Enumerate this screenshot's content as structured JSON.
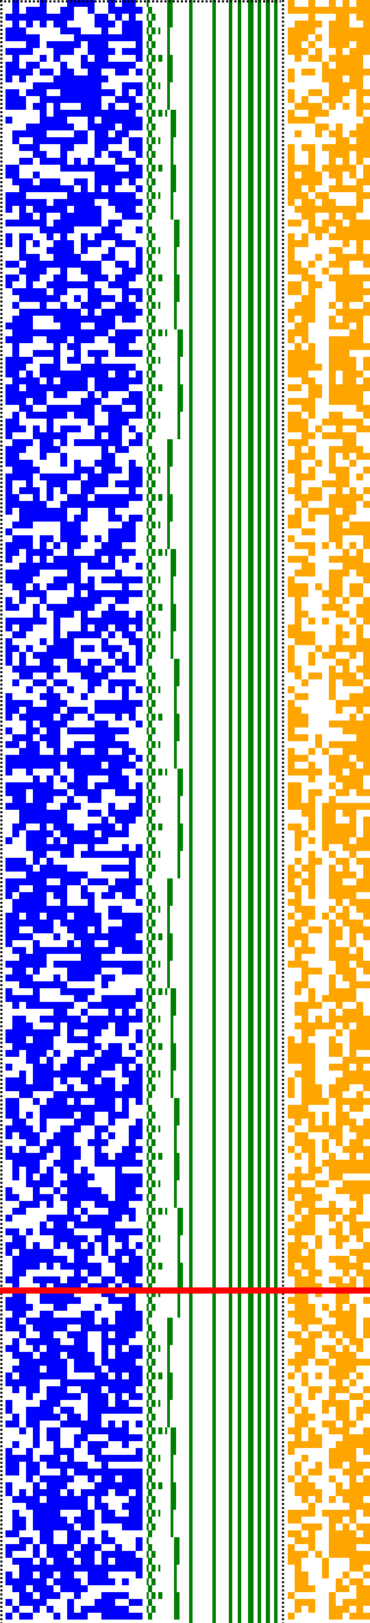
{
  "colors": {
    "background": "#ffffff",
    "binary_cells": "#0000ff",
    "triangle_pattern": "#008000",
    "vertical_bars": "#008000",
    "right_cells": "#ffa500",
    "marker_line": "#ff0000",
    "dotted_border": "#000000"
  },
  "grid": {
    "rows": 236,
    "left_columns": 21,
    "right_columns": 12,
    "marker_row": 189
  }
}
